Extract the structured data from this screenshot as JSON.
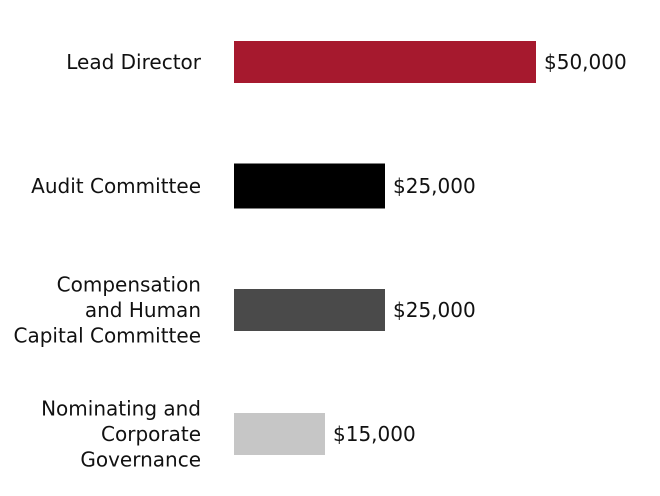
{
  "chart_data": {
    "type": "bar",
    "orientation": "horizontal",
    "categories": [
      [
        "Lead Director"
      ],
      [
        "Audit Committee"
      ],
      [
        "Compensation",
        "and Human",
        "Capital Committee"
      ],
      [
        "Nominating and",
        "Corporate",
        "Governance"
      ]
    ],
    "values": [
      50000,
      25000,
      25000,
      15000
    ],
    "value_labels": [
      "$50,000",
      "$25,000",
      "$25,000",
      "$15,000"
    ],
    "colors": [
      "#a6192e",
      "#000000",
      "#4a4a4a",
      "#c6c6c6"
    ],
    "xlim": [
      0,
      50000
    ],
    "grid": false,
    "legend": "none",
    "title": "",
    "xlabel": "",
    "ylabel": ""
  }
}
